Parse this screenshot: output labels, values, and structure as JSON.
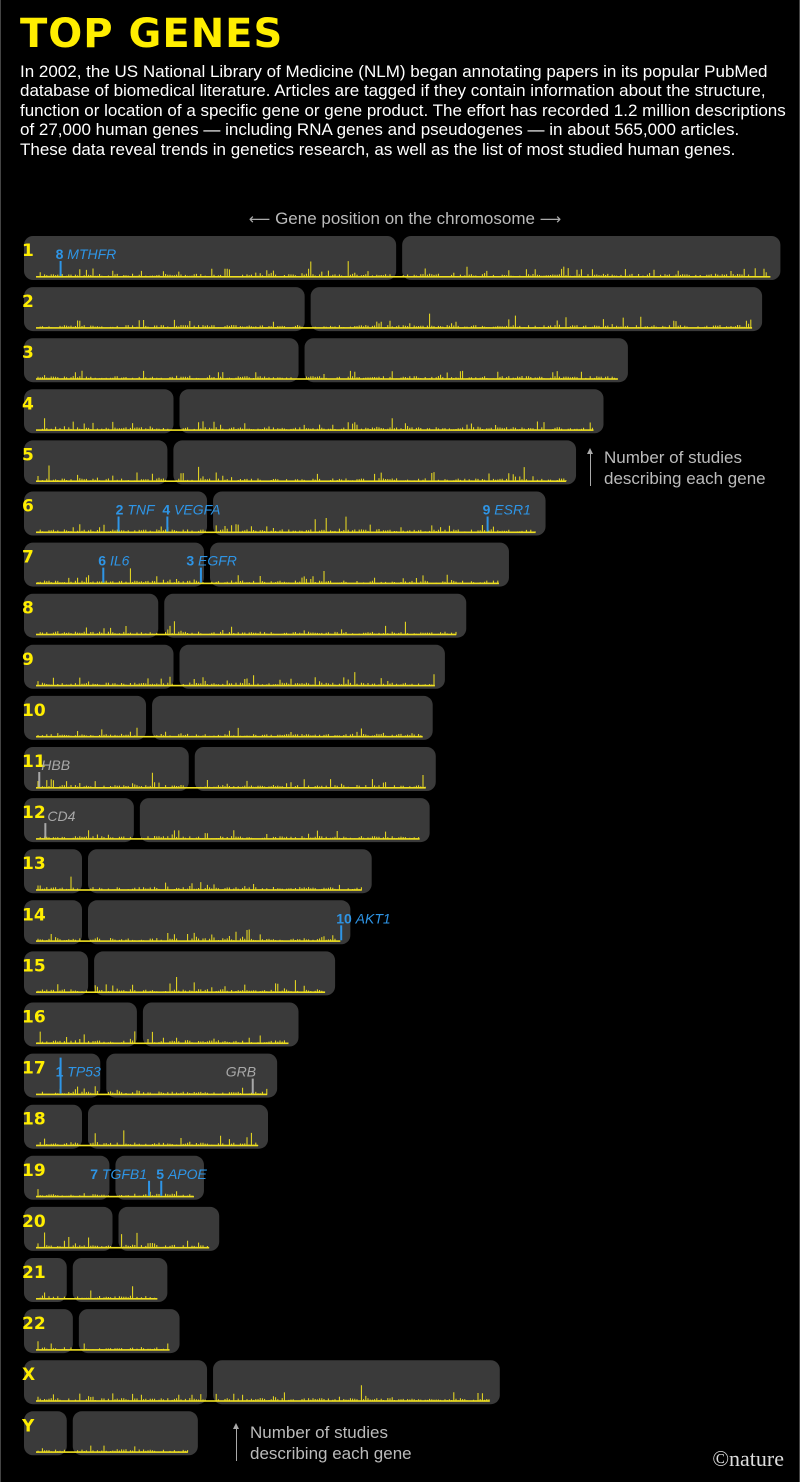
{
  "title": "TOP GENES",
  "intro": "In 2002, the US National Library of Medicine (NLM) began annotating papers in its popular PubMed database of biomedical literature. Articles are tagged if they contain information about the structure, function or location of a specific gene or gene product. The effort has recorded 1.2 million descriptions of 27,000 human genes — including RNA genes and pseudogenes — in about 565,000 articles. These data reveal trends in genetics research, as well as the list of most studied human genes.",
  "axis_caption": "Gene position on the chromosome",
  "note_upper": {
    "line1": "Number of studies",
    "line2": "describing each gene"
  },
  "note_lower": {
    "line1": "Number of studies",
    "line2": "describing each gene"
  },
  "credit": "©nature",
  "colors": {
    "background": "#000000",
    "title": "#ffee00",
    "chromosome": "#3a3a3a",
    "density": "#f0e020",
    "ranked_gene": "#2e95e6",
    "other_gene": "#a8a8a8"
  },
  "chart_data": {
    "type": "ideogram",
    "chromosomes": [
      {
        "name": "1",
        "length": 248,
        "centromere": 123
      },
      {
        "name": "2",
        "length": 242,
        "centromere": 93
      },
      {
        "name": "3",
        "length": 198,
        "centromere": 91
      },
      {
        "name": "4",
        "length": 190,
        "centromere": 50
      },
      {
        "name": "5",
        "length": 181,
        "centromere": 48
      },
      {
        "name": "6",
        "length": 171,
        "centromere": 61
      },
      {
        "name": "7",
        "length": 159,
        "centromere": 60
      },
      {
        "name": "8",
        "length": 145,
        "centromere": 45
      },
      {
        "name": "9",
        "length": 138,
        "centromere": 50
      },
      {
        "name": "10",
        "length": 134,
        "centromere": 41
      },
      {
        "name": "11",
        "length": 135,
        "centromere": 55
      },
      {
        "name": "12",
        "length": 133,
        "centromere": 37
      },
      {
        "name": "13",
        "length": 114,
        "centromere": 20
      },
      {
        "name": "14",
        "length": 107,
        "centromere": 20
      },
      {
        "name": "15",
        "length": 102,
        "centromere": 22
      },
      {
        "name": "16",
        "length": 90,
        "centromere": 38
      },
      {
        "name": "17",
        "length": 83,
        "centromere": 26
      },
      {
        "name": "18",
        "length": 80,
        "centromere": 20
      },
      {
        "name": "19",
        "length": 59,
        "centromere": 29
      },
      {
        "name": "20",
        "length": 64,
        "centromere": 30
      },
      {
        "name": "21",
        "length": 47,
        "centromere": 15
      },
      {
        "name": "22",
        "length": 51,
        "centromere": 17
      },
      {
        "name": "X",
        "length": 156,
        "centromere": 61
      },
      {
        "name": "Y",
        "length": 57,
        "centromere": 15
      }
    ],
    "ranked_genes": [
      {
        "rank": "1",
        "name": "TP53",
        "chromosome": "17",
        "position": 12
      },
      {
        "rank": "2",
        "name": "TNF",
        "chromosome": "6",
        "position": 31
      },
      {
        "rank": "3",
        "name": "EGFR",
        "chromosome": "7",
        "position": 58
      },
      {
        "rank": "4",
        "name": "VEGFA",
        "chromosome": "6",
        "position": 47
      },
      {
        "rank": "5",
        "name": "APOE",
        "chromosome": "19",
        "position": 45
      },
      {
        "rank": "6",
        "name": "IL6",
        "chromosome": "7",
        "position": 26
      },
      {
        "rank": "7",
        "name": "TGFB1",
        "chromosome": "19",
        "position": 41
      },
      {
        "rank": "8",
        "name": "MTHFR",
        "chromosome": "1",
        "position": 12
      },
      {
        "rank": "9",
        "name": "ESR1",
        "chromosome": "6",
        "position": 152
      },
      {
        "rank": "10",
        "name": "AKT1",
        "chromosome": "14",
        "position": 104
      }
    ],
    "other_genes": [
      {
        "name": "HBB",
        "chromosome": "11",
        "position": 5
      },
      {
        "name": "CD4",
        "chromosome": "12",
        "position": 7
      },
      {
        "name": "GRB",
        "chromosome": "17",
        "position": 75
      }
    ]
  }
}
